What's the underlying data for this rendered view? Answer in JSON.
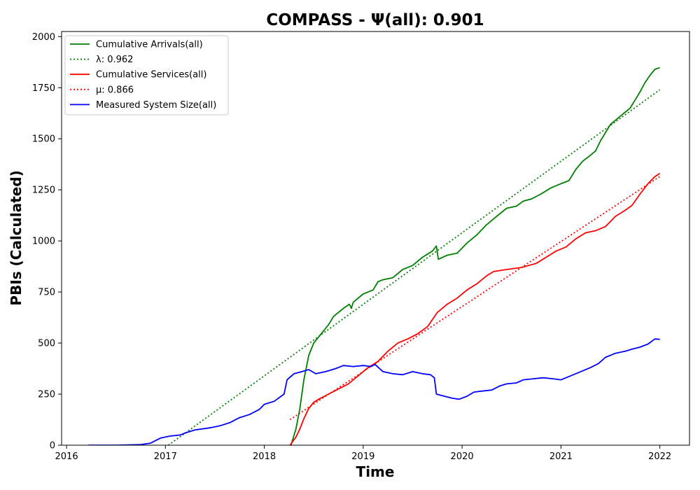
{
  "chart_data": {
    "type": "line",
    "title": "COMPASS -  Ψ(all): 0.901",
    "xlabel": "Time",
    "ylabel": "PBIs (Calculated)",
    "xlim": [
      2015.95,
      2022.3
    ],
    "ylim": [
      0,
      2025
    ],
    "x_ticks": [
      2016,
      2017,
      2018,
      2019,
      2020,
      2021,
      2022
    ],
    "x_tick_labels": [
      "2016",
      "2017",
      "2018",
      "2019",
      "2020",
      "2021",
      "2022"
    ],
    "y_ticks": [
      0,
      250,
      500,
      750,
      1000,
      1250,
      1500,
      1750,
      2000
    ],
    "y_tick_labels": [
      "0",
      "250",
      "500",
      "750",
      "1000",
      "1250",
      "1500",
      "1750",
      "2000"
    ],
    "grid": false,
    "legend_position": "top-left",
    "series": [
      {
        "name": "Cumulative Arrivals(all)",
        "legend_label": "Cumulative Arrivals(all)",
        "style": "solid",
        "color": "#008000",
        "points": [
          [
            2018.27,
            0
          ],
          [
            2018.32,
            80
          ],
          [
            2018.36,
            180
          ],
          [
            2018.4,
            320
          ],
          [
            2018.45,
            440
          ],
          [
            2018.5,
            500
          ],
          [
            2018.55,
            530
          ],
          [
            2018.6,
            560
          ],
          [
            2018.65,
            590
          ],
          [
            2018.7,
            630
          ],
          [
            2018.75,
            650
          ],
          [
            2018.8,
            670
          ],
          [
            2018.86,
            690
          ],
          [
            2018.88,
            670
          ],
          [
            2018.9,
            700
          ],
          [
            2019.0,
            740
          ],
          [
            2019.1,
            760
          ],
          [
            2019.15,
            800
          ],
          [
            2019.2,
            810
          ],
          [
            2019.3,
            820
          ],
          [
            2019.4,
            860
          ],
          [
            2019.5,
            880
          ],
          [
            2019.6,
            920
          ],
          [
            2019.7,
            950
          ],
          [
            2019.74,
            975
          ],
          [
            2019.76,
            910
          ],
          [
            2019.85,
            930
          ],
          [
            2019.95,
            940
          ],
          [
            2020.05,
            990
          ],
          [
            2020.15,
            1030
          ],
          [
            2020.25,
            1080
          ],
          [
            2020.35,
            1120
          ],
          [
            2020.45,
            1160
          ],
          [
            2020.55,
            1170
          ],
          [
            2020.62,
            1195
          ],
          [
            2020.7,
            1205
          ],
          [
            2020.8,
            1230
          ],
          [
            2020.9,
            1260
          ],
          [
            2021.0,
            1280
          ],
          [
            2021.08,
            1295
          ],
          [
            2021.15,
            1350
          ],
          [
            2021.22,
            1390
          ],
          [
            2021.3,
            1420
          ],
          [
            2021.35,
            1440
          ],
          [
            2021.4,
            1490
          ],
          [
            2021.45,
            1530
          ],
          [
            2021.5,
            1570
          ],
          [
            2021.6,
            1610
          ],
          [
            2021.7,
            1650
          ],
          [
            2021.75,
            1690
          ],
          [
            2021.8,
            1730
          ],
          [
            2021.85,
            1775
          ],
          [
            2021.9,
            1810
          ],
          [
            2021.95,
            1840
          ],
          [
            2022.0,
            1848
          ]
        ]
      },
      {
        "name": "λ: 0.962",
        "legend_label": "λ: 0.962",
        "style": "dotted",
        "color": "#008000",
        "points": [
          [
            2017.03,
            0
          ],
          [
            2022.0,
            1740
          ]
        ]
      },
      {
        "name": "Cumulative Services(all)",
        "legend_label": "Cumulative Services(all)",
        "style": "solid",
        "color": "#ff0000",
        "points": [
          [
            2018.26,
            0
          ],
          [
            2018.32,
            40
          ],
          [
            2018.36,
            80
          ],
          [
            2018.4,
            130
          ],
          [
            2018.45,
            180
          ],
          [
            2018.5,
            210
          ],
          [
            2018.55,
            225
          ],
          [
            2018.65,
            250
          ],
          [
            2018.75,
            275
          ],
          [
            2018.85,
            300
          ],
          [
            2018.95,
            340
          ],
          [
            2019.05,
            380
          ],
          [
            2019.15,
            410
          ],
          [
            2019.25,
            460
          ],
          [
            2019.35,
            500
          ],
          [
            2019.45,
            520
          ],
          [
            2019.55,
            545
          ],
          [
            2019.65,
            580
          ],
          [
            2019.75,
            650
          ],
          [
            2019.85,
            690
          ],
          [
            2019.95,
            720
          ],
          [
            2020.05,
            760
          ],
          [
            2020.15,
            790
          ],
          [
            2020.25,
            830
          ],
          [
            2020.32,
            850
          ],
          [
            2020.45,
            860
          ],
          [
            2020.6,
            870
          ],
          [
            2020.75,
            890
          ],
          [
            2020.85,
            920
          ],
          [
            2020.95,
            950
          ],
          [
            2021.05,
            970
          ],
          [
            2021.15,
            1010
          ],
          [
            2021.25,
            1040
          ],
          [
            2021.35,
            1050
          ],
          [
            2021.45,
            1070
          ],
          [
            2021.55,
            1120
          ],
          [
            2021.65,
            1150
          ],
          [
            2021.72,
            1175
          ],
          [
            2021.8,
            1230
          ],
          [
            2021.88,
            1280
          ],
          [
            2021.95,
            1315
          ],
          [
            2022.0,
            1330
          ]
        ]
      },
      {
        "name": "μ: 0.866",
        "legend_label": "μ: 0.866",
        "style": "dotted",
        "color": "#ff0000",
        "points": [
          [
            2018.26,
            125
          ],
          [
            2022.0,
            1315
          ]
        ]
      },
      {
        "name": "Measured System Size(all)",
        "legend_label": "Measured System Size(all)",
        "style": "solid",
        "color": "#0000ff",
        "points": [
          [
            2016.22,
            0
          ],
          [
            2016.5,
            0
          ],
          [
            2016.75,
            3
          ],
          [
            2016.85,
            10
          ],
          [
            2016.95,
            35
          ],
          [
            2017.05,
            45
          ],
          [
            2017.15,
            50
          ],
          [
            2017.2,
            60
          ],
          [
            2017.3,
            75
          ],
          [
            2017.45,
            85
          ],
          [
            2017.55,
            95
          ],
          [
            2017.65,
            110
          ],
          [
            2017.75,
            135
          ],
          [
            2017.85,
            150
          ],
          [
            2017.95,
            175
          ],
          [
            2018.0,
            200
          ],
          [
            2018.1,
            215
          ],
          [
            2018.2,
            250
          ],
          [
            2018.23,
            320
          ],
          [
            2018.3,
            350
          ],
          [
            2018.38,
            360
          ],
          [
            2018.45,
            370
          ],
          [
            2018.52,
            350
          ],
          [
            2018.62,
            360
          ],
          [
            2018.72,
            375
          ],
          [
            2018.8,
            390
          ],
          [
            2018.9,
            385
          ],
          [
            2019.0,
            390
          ],
          [
            2019.08,
            385
          ],
          [
            2019.12,
            395
          ],
          [
            2019.2,
            360
          ],
          [
            2019.3,
            350
          ],
          [
            2019.4,
            345
          ],
          [
            2019.5,
            360
          ],
          [
            2019.6,
            350
          ],
          [
            2019.68,
            345
          ],
          [
            2019.72,
            330
          ],
          [
            2019.74,
            250
          ],
          [
            2019.82,
            240
          ],
          [
            2019.9,
            230
          ],
          [
            2019.97,
            225
          ],
          [
            2020.05,
            240
          ],
          [
            2020.12,
            260
          ],
          [
            2020.2,
            265
          ],
          [
            2020.3,
            270
          ],
          [
            2020.38,
            290
          ],
          [
            2020.45,
            300
          ],
          [
            2020.55,
            305
          ],
          [
            2020.62,
            320
          ],
          [
            2020.72,
            325
          ],
          [
            2020.82,
            330
          ],
          [
            2020.92,
            325
          ],
          [
            2021.0,
            320
          ],
          [
            2021.1,
            340
          ],
          [
            2021.2,
            360
          ],
          [
            2021.3,
            380
          ],
          [
            2021.38,
            400
          ],
          [
            2021.45,
            430
          ],
          [
            2021.55,
            450
          ],
          [
            2021.65,
            460
          ],
          [
            2021.72,
            470
          ],
          [
            2021.8,
            480
          ],
          [
            2021.88,
            495
          ],
          [
            2021.95,
            520
          ],
          [
            2022.0,
            518
          ]
        ]
      }
    ]
  }
}
